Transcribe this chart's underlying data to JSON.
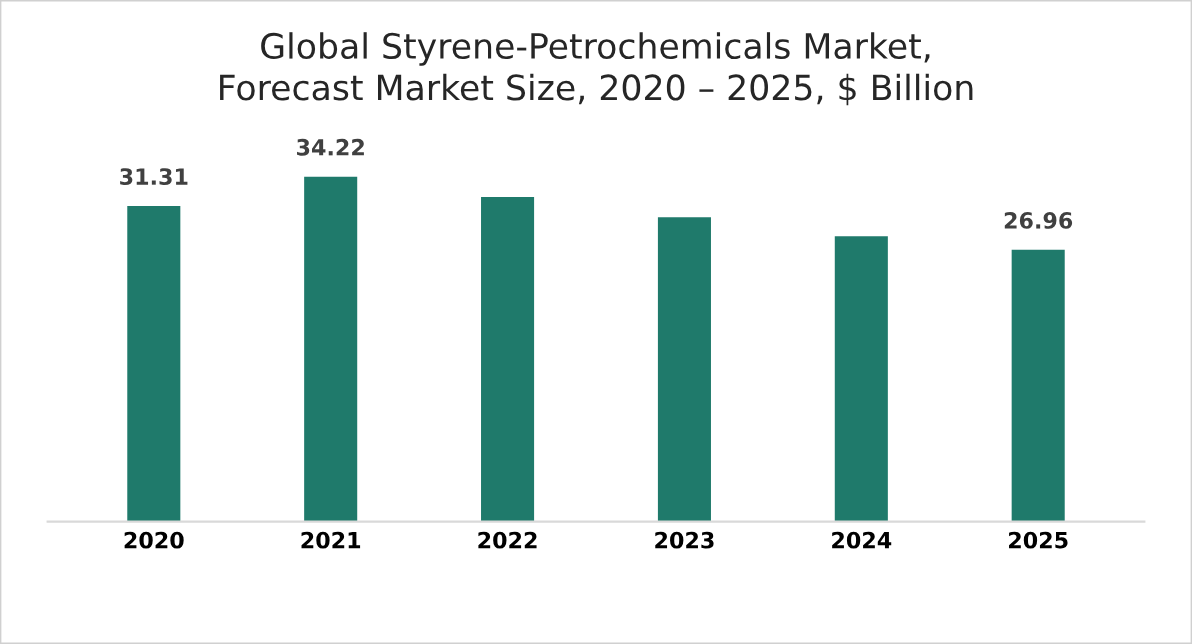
{
  "chart_data": {
    "type": "bar",
    "title": "Global Styrene-Petrochemicals Market,\nForecast Market Size, 2020 – 2025, $ Billion",
    "categories": [
      "2020",
      "2021",
      "2022",
      "2023",
      "2024",
      "2025"
    ],
    "values": [
      31.31,
      34.22,
      32.2,
      30.2,
      28.3,
      26.96
    ],
    "value_labels": [
      "31.31",
      "34.22",
      null,
      null,
      null,
      "26.96"
    ],
    "color": "#1f7a6b",
    "tick_labels": "x",
    "grid": false
  }
}
